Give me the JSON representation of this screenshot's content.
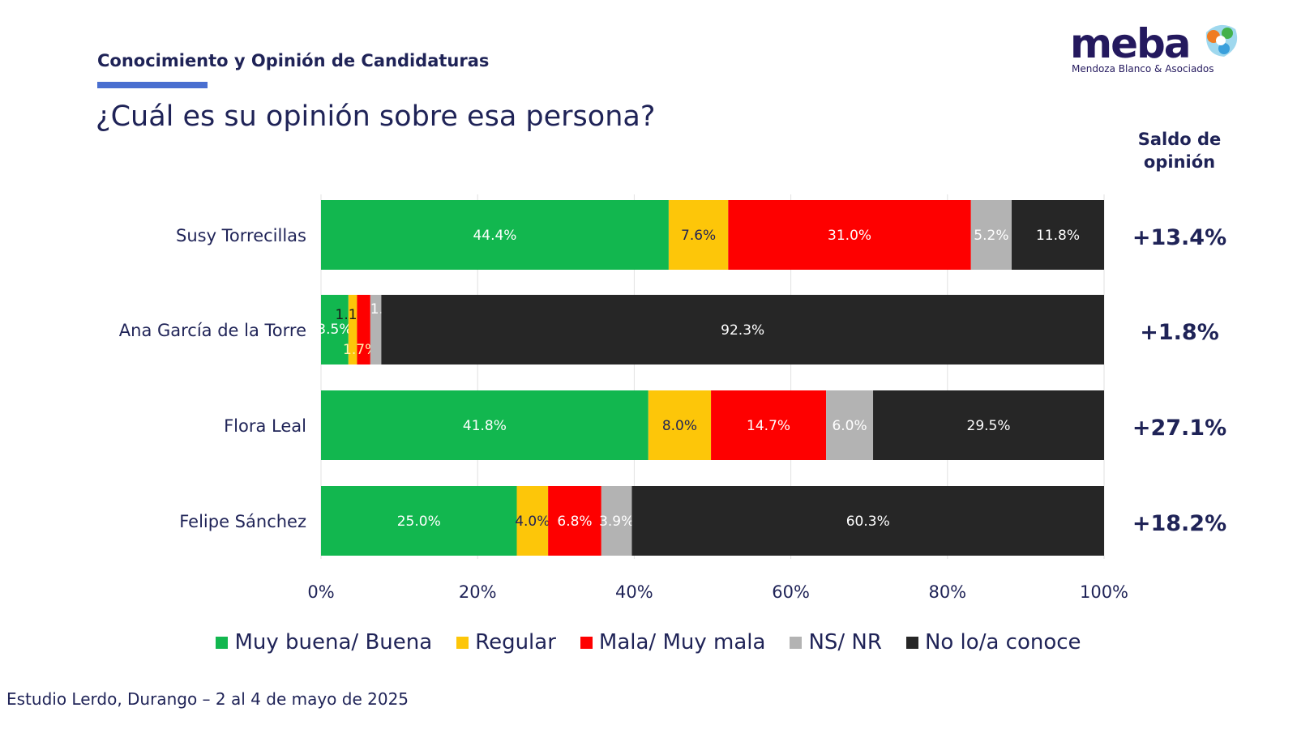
{
  "header": {
    "section_title": "Conocimiento y Opinión de Candidaturas",
    "question": "¿Cuál es su opinión sobre esa persona?",
    "logo_word": "meba",
    "logo_subtitle": "Mendoza Blanco & Asociados"
  },
  "saldo": {
    "title_line1": "Saldo de",
    "title_line2": "opinión"
  },
  "footer": "Estudio Lerdo, Durango – 2 al 4 de mayo de 2025",
  "chart_data": {
    "type": "bar",
    "orientation": "horizontal",
    "stacked": true,
    "categories": [
      "Susy Torrecillas",
      "Ana García de la Torre",
      "Flora Leal",
      "Felipe Sánchez"
    ],
    "series": [
      {
        "name": "Muy buena/ Buena",
        "color": "#12b74f",
        "values": [
          44.4,
          3.5,
          41.8,
          25.0
        ]
      },
      {
        "name": "Regular",
        "color": "#fdc609",
        "values": [
          7.6,
          1.1,
          8.0,
          4.0
        ]
      },
      {
        "name": "Mala/ Muy mala",
        "color": "#fe0000",
        "values": [
          31.0,
          1.7,
          14.7,
          6.8
        ]
      },
      {
        "name": "NS/ NR",
        "color": "#b3b3b3",
        "values": [
          5.2,
          1.4,
          6.0,
          3.9
        ]
      },
      {
        "name": "No lo/a conoce",
        "color": "#262626",
        "values": [
          11.8,
          92.3,
          29.5,
          60.3
        ]
      }
    ],
    "saldo_de_opinion": [
      "+13.4%",
      "+1.8%",
      "+27.1%",
      "+18.2%"
    ],
    "xlim": [
      0,
      100
    ],
    "xticks": [
      "0%",
      "20%",
      "40%",
      "60%",
      "80%",
      "100%"
    ],
    "grid": true,
    "legend_placement": "bottom"
  }
}
